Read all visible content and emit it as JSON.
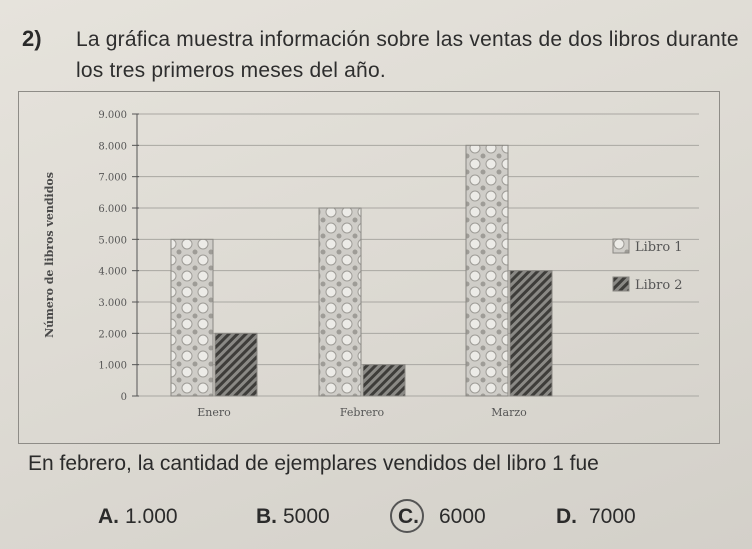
{
  "question": {
    "number": "2)",
    "text": "La gráfica muestra información sobre las ventas de dos libros durante los tres primeros meses del año.",
    "prompt": "En febrero, la cantidad de ejemplares vendidos del libro 1 fue"
  },
  "options": [
    {
      "letter": "A.",
      "value": "1.000"
    },
    {
      "letter": "B.",
      "value": "5000"
    },
    {
      "letter": "C.",
      "value": "6000",
      "marked": true
    },
    {
      "letter": "D.",
      "value": "7000"
    }
  ],
  "chart_data": {
    "type": "bar",
    "categories": [
      "Enero",
      "Febrero",
      "Marzo"
    ],
    "series": [
      {
        "name": "Libro 1",
        "values": [
          5000,
          6000,
          8000
        ]
      },
      {
        "name": "Libro 2",
        "values": [
          2000,
          1000,
          4000
        ]
      }
    ],
    "ylabel": "Número de libros vendidos",
    "ylim": [
      0,
      9000
    ],
    "yticks": [
      "0",
      "1.000",
      "2.000",
      "3.000",
      "4.000",
      "5.000",
      "6.000",
      "7.000",
      "8.000",
      "9.000"
    ],
    "grid": true,
    "legend": "right",
    "colors": {
      "libro1": "#c9c7c2",
      "libro2": "#5e5d5a"
    }
  }
}
